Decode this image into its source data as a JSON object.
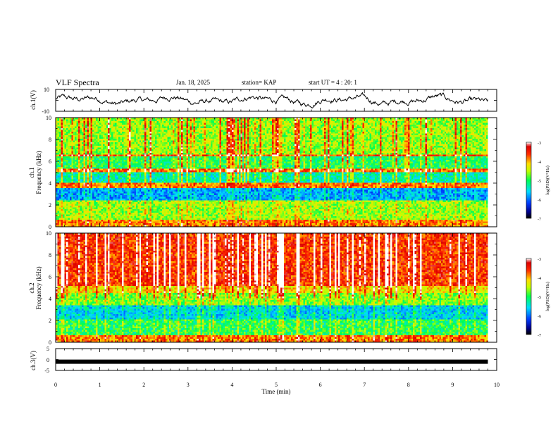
{
  "header": {
    "title": "VLF Spectra",
    "date": "Jan. 18, 2025",
    "station": "station= KAP",
    "start_ut": "start  UT =   4 : 20: 1"
  },
  "chart_data": [
    {
      "type": "line",
      "panel": "ch1-waveform",
      "ylabel": "ch.1(V)",
      "ylim": [
        -10,
        10
      ],
      "yticks": [
        "10",
        "-10"
      ],
      "xlim": [
        0,
        10
      ],
      "x_end": 9.8,
      "color": "#000000"
    },
    {
      "type": "heatmap",
      "panel": "ch1-spectrogram",
      "ylabel": "ch.1\nFrequency (kHz)",
      "ylim": [
        0,
        10
      ],
      "yticks": [
        "0",
        "2",
        "4",
        "6",
        "8",
        "10"
      ],
      "xlim": [
        0,
        10
      ],
      "x_end": 9.8,
      "colorbar": {
        "label": "log(PSD)(V²/Hz)",
        "ticks": [
          "-3",
          "-4",
          "-5",
          "-6",
          "-7"
        ],
        "range": [
          -7,
          -3
        ]
      }
    },
    {
      "type": "heatmap",
      "panel": "ch2-spectrogram",
      "ylabel": "ch.2\nFrequency (kHz)",
      "ylim": [
        0,
        10
      ],
      "yticks": [
        "0",
        "2",
        "4",
        "6",
        "8",
        "10"
      ],
      "xlim": [
        0,
        10
      ],
      "x_end": 9.8,
      "colorbar": {
        "label": "log(PSD)(V²/Hz)",
        "ticks": [
          "-3",
          "-4",
          "-5",
          "-6",
          "-7"
        ],
        "range": [
          -7,
          -3
        ]
      }
    },
    {
      "type": "line",
      "panel": "ch3-waveform",
      "ylabel": "ch.3(V)",
      "ylim": [
        -5,
        5
      ],
      "yticks": [
        "5",
        "0",
        "-5"
      ],
      "xlim": [
        0,
        10
      ],
      "x_end": 9.8,
      "level": -1.0,
      "color": "#000000"
    }
  ],
  "xaxis": {
    "label": "Time (min)",
    "ticks": [
      "0",
      "1",
      "2",
      "3",
      "4",
      "5",
      "6",
      "7",
      "8",
      "9",
      "10"
    ]
  }
}
